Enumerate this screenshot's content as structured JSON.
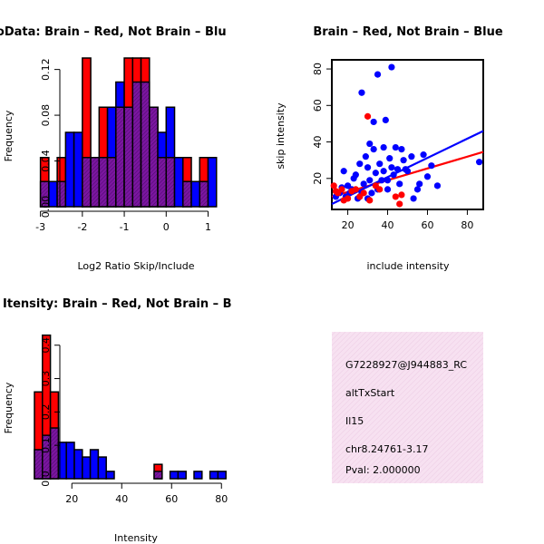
{
  "chart_data": [
    {
      "type": "bar",
      "title": "RatioData: Brain – Red, Not Brain – Blu",
      "xlabel": "Log2 Ratio Skip/Include",
      "ylabel": "Frequency",
      "xlim": [
        -3.1,
        1.4
      ],
      "ylim": [
        0,
        0.13
      ],
      "xticks": [
        "-3",
        "-2",
        "-1",
        "0",
        "1"
      ],
      "yticks": [
        "0.00",
        "0.04",
        "0.08",
        "0.12"
      ],
      "bin_width": 0.2,
      "bins_start": [
        -3.0,
        -2.8,
        -2.6,
        -2.4,
        -2.2,
        -2.0,
        -1.8,
        -1.6,
        -1.4,
        -1.2,
        -1.0,
        -0.8,
        -0.6,
        -0.4,
        -0.2,
        0.0,
        0.2,
        0.4,
        0.6,
        0.8,
        1.0
      ],
      "series": [
        {
          "name": "Brain",
          "color": "#ff0000",
          "values": [
            0.043,
            0.0,
            0.043,
            0.0,
            0.0,
            0.13,
            0.043,
            0.087,
            0.043,
            0.087,
            0.13,
            0.13,
            0.13,
            0.087,
            0.043,
            0.043,
            0.0,
            0.043,
            0.0,
            0.043,
            0.0
          ]
        },
        {
          "name": "Not Brain",
          "color": "#0000ff",
          "values": [
            0.022,
            0.022,
            0.022,
            0.065,
            0.065,
            0.043,
            0.043,
            0.043,
            0.087,
            0.109,
            0.087,
            0.109,
            0.109,
            0.087,
            0.065,
            0.087,
            0.043,
            0.022,
            0.022,
            0.022,
            0.043
          ]
        }
      ],
      "overlap_color": "#7b16a0"
    },
    {
      "type": "scatter",
      "title": "Brain – Red, Not Brain – Blue",
      "xlabel": "include intensity",
      "ylabel": "skip intensity",
      "xlim": [
        12,
        88
      ],
      "ylim": [
        3,
        85
      ],
      "xticks": [
        20,
        40,
        60,
        80
      ],
      "yticks": [
        20,
        40,
        60,
        80
      ],
      "series": [
        {
          "name": "Brain",
          "color": "#ff0000",
          "points": [
            [
              13,
              16
            ],
            [
              14,
              13
            ],
            [
              15,
              12
            ],
            [
              17,
              14
            ],
            [
              18,
              8
            ],
            [
              20,
              9
            ],
            [
              22,
              13
            ],
            [
              24,
              14
            ],
            [
              26,
              10
            ],
            [
              28,
              12
            ],
            [
              30,
              54
            ],
            [
              31,
              8
            ],
            [
              34,
              16
            ],
            [
              36,
              14
            ],
            [
              44,
              10
            ],
            [
              46,
              6
            ],
            [
              47,
              11
            ]
          ],
          "fit": {
            "from": [
              12,
              10.0
            ],
            "to": [
              88,
              34.5
            ]
          }
        },
        {
          "name": "Not Brain",
          "color": "#0000ff",
          "points": [
            [
              14,
              10
            ],
            [
              16,
              12
            ],
            [
              17,
              15
            ],
            [
              18,
              24
            ],
            [
              19,
              10
            ],
            [
              20,
              16
            ],
            [
              21,
              12
            ],
            [
              22,
              14
            ],
            [
              23,
              20
            ],
            [
              24,
              22
            ],
            [
              25,
              9
            ],
            [
              26,
              28
            ],
            [
              27,
              67
            ],
            [
              27,
              12
            ],
            [
              28,
              17
            ],
            [
              29,
              32
            ],
            [
              30,
              9
            ],
            [
              30,
              26
            ],
            [
              31,
              39
            ],
            [
              31,
              19
            ],
            [
              32,
              12
            ],
            [
              33,
              36
            ],
            [
              33,
              51
            ],
            [
              34,
              23
            ],
            [
              35,
              77
            ],
            [
              35,
              14
            ],
            [
              36,
              28
            ],
            [
              37,
              19
            ],
            [
              38,
              24
            ],
            [
              38,
              37
            ],
            [
              39,
              52
            ],
            [
              40,
              14
            ],
            [
              40,
              19
            ],
            [
              41,
              31
            ],
            [
              42,
              81
            ],
            [
              42,
              26
            ],
            [
              43,
              22
            ],
            [
              44,
              37
            ],
            [
              45,
              25
            ],
            [
              46,
              17
            ],
            [
              47,
              36
            ],
            [
              48,
              30
            ],
            [
              49,
              25
            ],
            [
              50,
              24
            ],
            [
              52,
              32
            ],
            [
              53,
              9
            ],
            [
              55,
              14
            ],
            [
              56,
              17
            ],
            [
              58,
              33
            ],
            [
              60,
              21
            ],
            [
              62,
              27
            ],
            [
              65,
              16
            ],
            [
              86,
              29
            ]
          ],
          "fit": {
            "from": [
              12,
              6.0
            ],
            "to": [
              88,
              46.0
            ]
          }
        }
      ]
    },
    {
      "type": "bar",
      "title": "ne Itensity: Brain – Red, Not Brain – B",
      "xlabel": "Intensity",
      "ylabel": "Frequency",
      "xlim": [
        5,
        85
      ],
      "ylim": [
        0,
        0.44
      ],
      "xticks": [
        "20",
        "40",
        "60",
        "80"
      ],
      "yticks": [
        "0.0",
        "0.1",
        "0.2",
        "0.3",
        "0.4"
      ],
      "bin_width": 3.2,
      "bins_start": [
        5.0,
        8.2,
        11.4,
        14.6,
        17.8,
        21.0,
        24.2,
        27.4,
        30.6,
        33.8,
        37.0,
        40.2,
        43.4,
        46.6,
        49.8,
        53.0,
        56.2,
        59.4,
        62.6,
        65.8,
        69.0,
        72.2,
        75.4,
        78.6
      ],
      "series": [
        {
          "name": "Brain",
          "color": "#ff0000",
          "values": [
            0.26,
            0.43,
            0.26,
            0.0,
            0.0,
            0.0,
            0.0,
            0.0,
            0.0,
            0.0,
            0.0,
            0.0,
            0.0,
            0.0,
            0.0,
            0.043,
            0.0,
            0.0,
            0.0,
            0.0,
            0.0,
            0.0,
            0.0,
            0.0
          ]
        },
        {
          "name": "Not Brain",
          "color": "#0000ff",
          "values": [
            0.087,
            0.13,
            0.152,
            0.109,
            0.109,
            0.087,
            0.065,
            0.087,
            0.065,
            0.022,
            0.0,
            0.0,
            0.0,
            0.0,
            0.0,
            0.022,
            0.0,
            0.022,
            0.022,
            0.0,
            0.022,
            0.0,
            0.022,
            0.022
          ]
        }
      ],
      "overlap_color": "#7b16a0"
    }
  ],
  "info_panel": {
    "id": "G7228927@J944883_RC",
    "event": "altTxStart",
    "gene": "Il15",
    "location": "chr8.24761-3.17",
    "pval": "Pval: 2.000000",
    "pval_color": "#cc0000",
    "background": "#f5dcef"
  }
}
